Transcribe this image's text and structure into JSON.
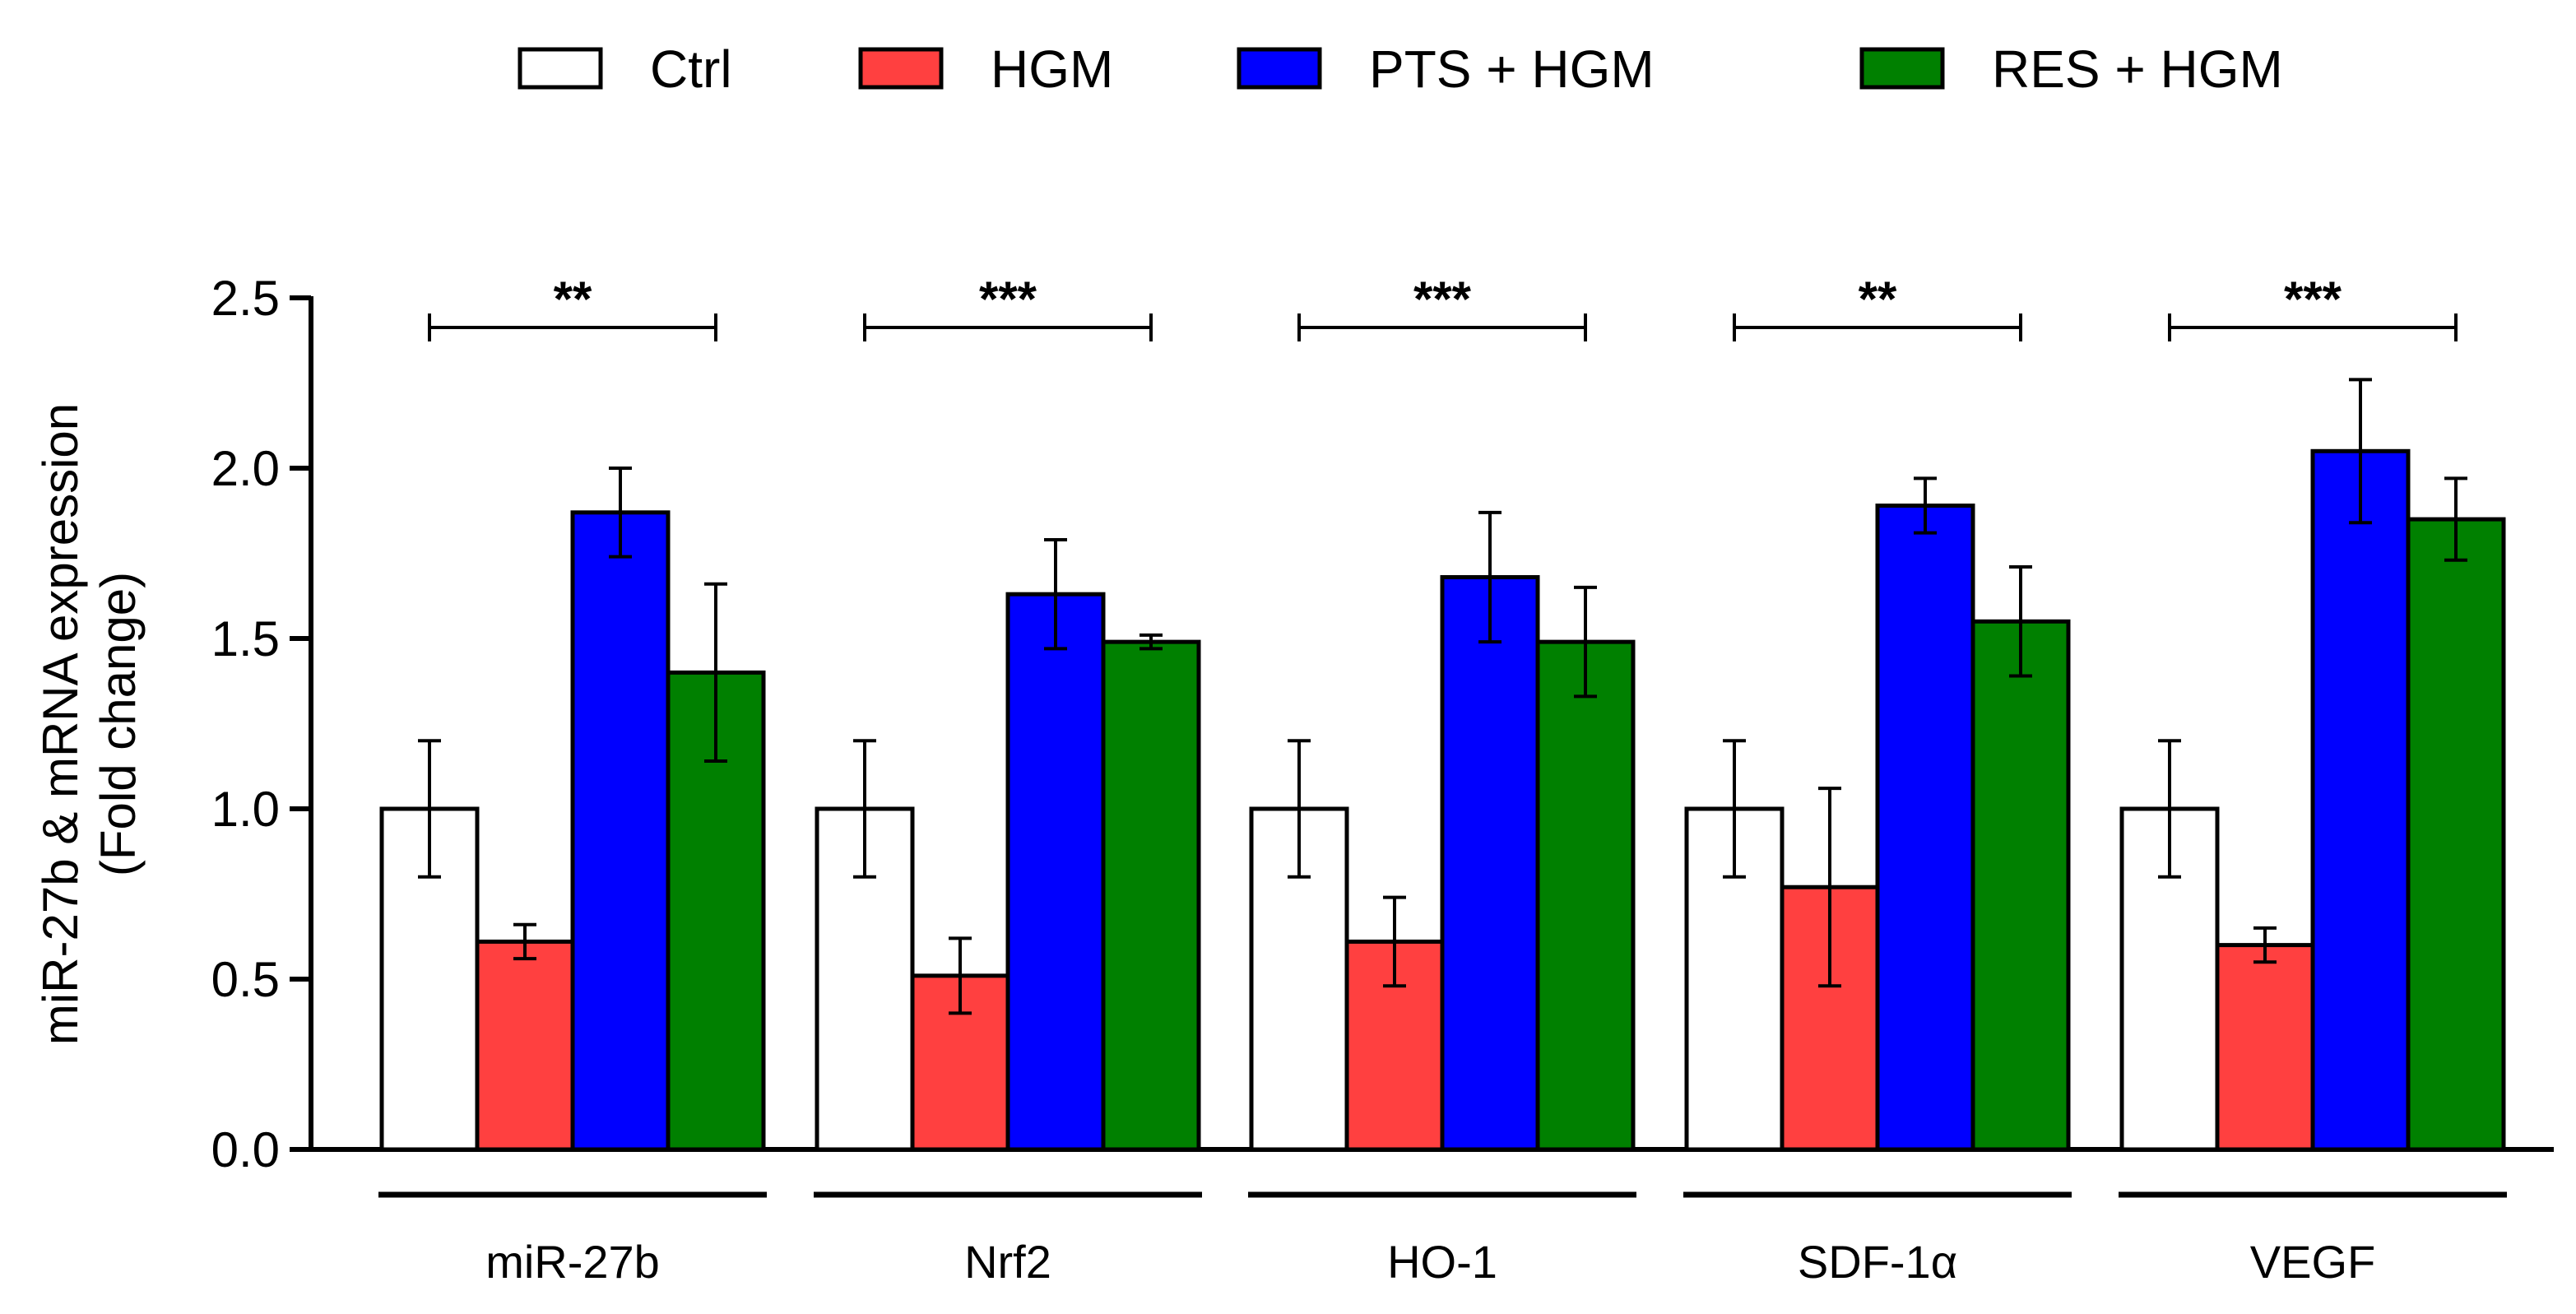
{
  "chart_data": {
    "type": "bar",
    "title": "",
    "ylabel_lines": [
      "miR-27b & mRNA expression",
      "(Fold change)"
    ],
    "xlabel": "",
    "ylim": [
      0,
      2.5
    ],
    "yticks": [
      "0.0",
      "0.5",
      "1.0",
      "1.5",
      "2.0",
      "2.5"
    ],
    "grid": false,
    "legend_position": "top",
    "categories": [
      "miR-27b",
      "Nrf2",
      "HO-1",
      "SDF-1α",
      "VEGF"
    ],
    "series": [
      {
        "name": "Ctrl",
        "color": "#ffffff",
        "values": [
          1.0,
          1.0,
          1.0,
          1.0,
          1.0
        ],
        "errors": [
          0.2,
          0.2,
          0.2,
          0.2,
          0.2
        ]
      },
      {
        "name": "HGM",
        "color": "#ff4040",
        "values": [
          0.61,
          0.51,
          0.61,
          0.77,
          0.6
        ],
        "errors": [
          0.05,
          0.11,
          0.13,
          0.29,
          0.05
        ]
      },
      {
        "name": "PTS + HGM",
        "color": "#0000ff",
        "values": [
          1.87,
          1.63,
          1.68,
          1.89,
          2.05
        ],
        "errors": [
          0.13,
          0.16,
          0.19,
          0.08,
          0.21
        ]
      },
      {
        "name": "RES + HGM",
        "color": "#008000",
        "values": [
          1.4,
          1.49,
          1.49,
          1.55,
          1.85
        ],
        "errors": [
          0.26,
          0.02,
          0.16,
          0.16,
          0.12
        ]
      }
    ],
    "significance": [
      "**",
      "***",
      "***",
      "**",
      "***"
    ]
  }
}
